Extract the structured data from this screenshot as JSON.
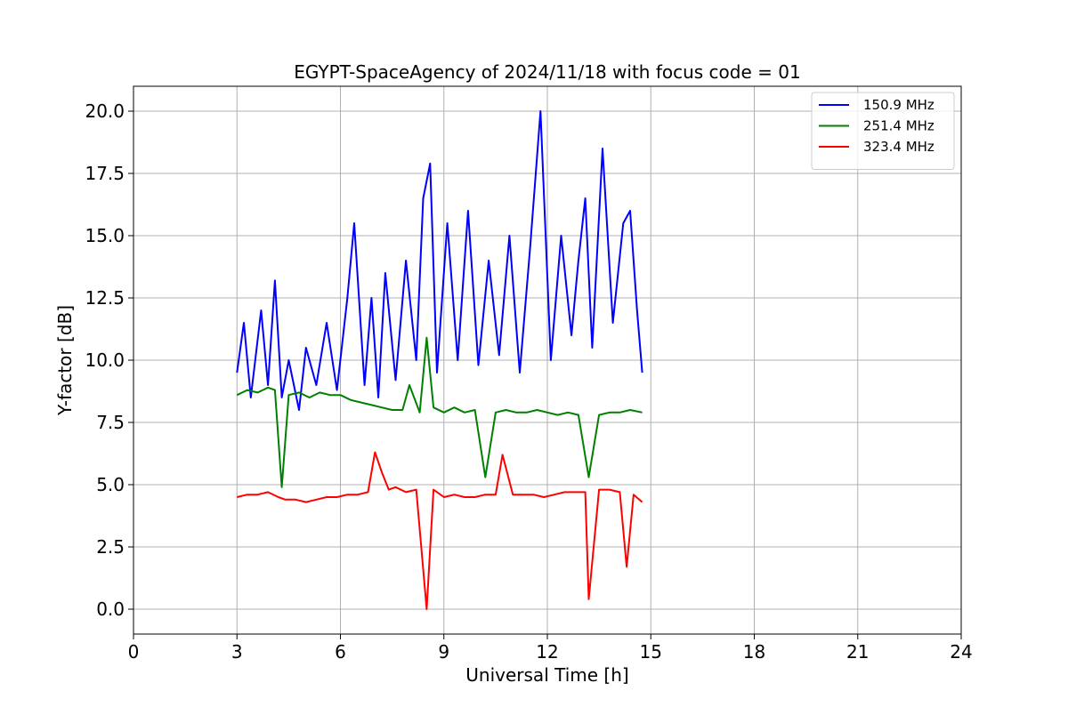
{
  "chart_data": {
    "type": "line",
    "title": "EGYPT-SpaceAgency of 2024/11/18 with focus code = 01",
    "xlabel": "Universal Time [h]",
    "ylabel": "Y-factor [dB]",
    "xlim": [
      0,
      24
    ],
    "ylim": [
      -1.0,
      21.0
    ],
    "xticks": [
      0,
      3,
      6,
      9,
      12,
      15,
      18,
      21,
      24
    ],
    "xtick_labels": [
      "0",
      "3",
      "6",
      "9",
      "12",
      "15",
      "18",
      "21",
      "24"
    ],
    "yticks": [
      0.0,
      2.5,
      5.0,
      7.5,
      10.0,
      12.5,
      15.0,
      17.5,
      20.0
    ],
    "ytick_labels": [
      "0.0",
      "2.5",
      "5.0",
      "7.5",
      "10.0",
      "12.5",
      "15.0",
      "17.5",
      "20.0"
    ],
    "grid": true,
    "legend_position": "top-right",
    "series": [
      {
        "name": "150.9 MHz",
        "color": "#0000ff",
        "x": [
          3.0,
          3.2,
          3.4,
          3.7,
          3.9,
          4.1,
          4.3,
          4.5,
          4.8,
          5.0,
          5.3,
          5.6,
          5.9,
          6.2,
          6.4,
          6.7,
          6.9,
          7.1,
          7.3,
          7.6,
          7.9,
          8.2,
          8.4,
          8.6,
          8.8,
          9.1,
          9.4,
          9.7,
          10.0,
          10.3,
          10.6,
          10.9,
          11.2,
          11.5,
          11.8,
          12.1,
          12.4,
          12.7,
          12.9,
          13.1,
          13.3,
          13.6,
          13.9,
          14.2,
          14.4,
          14.6,
          14.75
        ],
        "y": [
          9.5,
          11.5,
          8.5,
          12.0,
          9.0,
          13.2,
          8.5,
          10.0,
          8.0,
          10.5,
          9.0,
          11.5,
          8.8,
          12.5,
          15.5,
          9.0,
          12.5,
          8.5,
          13.5,
          9.2,
          14.0,
          10.0,
          16.5,
          17.9,
          9.5,
          15.5,
          10.0,
          16.0,
          9.8,
          14.0,
          10.2,
          15.0,
          9.5,
          14.5,
          20.0,
          10.0,
          15.0,
          11.0,
          14.0,
          16.5,
          10.5,
          18.5,
          11.5,
          15.5,
          16.0,
          12.0,
          9.5
        ]
      },
      {
        "name": "251.4 MHz",
        "color": "#008000",
        "x": [
          3.0,
          3.3,
          3.6,
          3.9,
          4.1,
          4.3,
          4.5,
          4.8,
          5.1,
          5.4,
          5.7,
          6.0,
          6.3,
          6.6,
          6.9,
          7.2,
          7.5,
          7.8,
          8.0,
          8.3,
          8.5,
          8.7,
          9.0,
          9.3,
          9.6,
          9.9,
          10.2,
          10.5,
          10.8,
          11.1,
          11.4,
          11.7,
          12.0,
          12.3,
          12.6,
          12.9,
          13.2,
          13.5,
          13.8,
          14.1,
          14.4,
          14.75
        ],
        "y": [
          8.6,
          8.8,
          8.7,
          8.9,
          8.8,
          4.9,
          8.6,
          8.7,
          8.5,
          8.7,
          8.6,
          8.6,
          8.4,
          8.3,
          8.2,
          8.1,
          8.0,
          8.0,
          9.0,
          7.9,
          10.9,
          8.1,
          7.9,
          8.1,
          7.9,
          8.0,
          5.3,
          7.9,
          8.0,
          7.9,
          7.9,
          8.0,
          7.9,
          7.8,
          7.9,
          7.8,
          5.3,
          7.8,
          7.9,
          7.9,
          8.0,
          7.9
        ]
      },
      {
        "name": "323.4 MHz",
        "color": "#ff0000",
        "x": [
          3.0,
          3.3,
          3.6,
          3.9,
          4.2,
          4.4,
          4.7,
          5.0,
          5.3,
          5.6,
          5.9,
          6.2,
          6.5,
          6.8,
          7.0,
          7.2,
          7.4,
          7.6,
          7.9,
          8.2,
          8.5,
          8.7,
          9.0,
          9.3,
          9.6,
          9.9,
          10.2,
          10.5,
          10.7,
          11.0,
          11.3,
          11.6,
          11.9,
          12.2,
          12.5,
          12.8,
          13.1,
          13.2,
          13.5,
          13.8,
          14.1,
          14.3,
          14.5,
          14.75
        ],
        "y": [
          4.5,
          4.6,
          4.6,
          4.7,
          4.5,
          4.4,
          4.4,
          4.3,
          4.4,
          4.5,
          4.5,
          4.6,
          4.6,
          4.7,
          6.3,
          5.5,
          4.8,
          4.9,
          4.7,
          4.8,
          0.0,
          4.8,
          4.5,
          4.6,
          4.5,
          4.5,
          4.6,
          4.6,
          6.2,
          4.6,
          4.6,
          4.6,
          4.5,
          4.6,
          4.7,
          4.7,
          4.7,
          0.4,
          4.8,
          4.8,
          4.7,
          1.7,
          4.6,
          4.3
        ]
      }
    ]
  }
}
